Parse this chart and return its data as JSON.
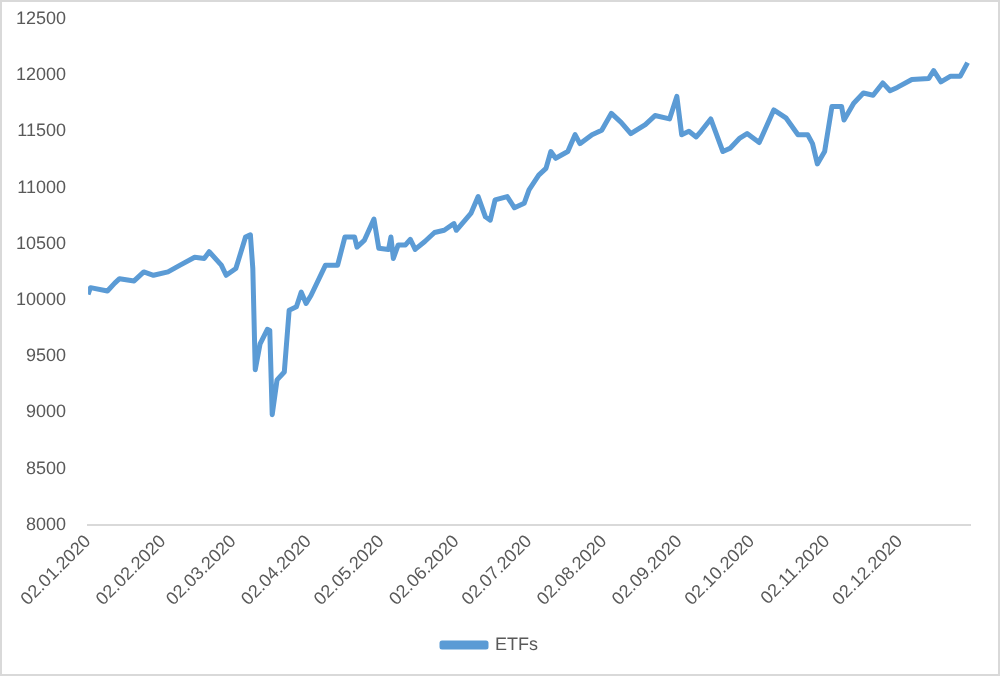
{
  "chart_data": {
    "type": "line",
    "legend": "bottom",
    "grid": false,
    "marker": "none",
    "line_style": "solid",
    "x": [
      "2020-01-02",
      "2020-01-03",
      "2020-01-10",
      "2020-01-13",
      "2020-01-15",
      "2020-01-21",
      "2020-01-25",
      "2020-01-29",
      "2020-02-04",
      "2020-02-09",
      "2020-02-15",
      "2020-02-19",
      "2020-02-21",
      "2020-02-26",
      "2020-02-28",
      "2020-03-03",
      "2020-03-07",
      "2020-03-09",
      "2020-03-10",
      "2020-03-11",
      "2020-03-13",
      "2020-03-16",
      "2020-03-17",
      "2020-03-18",
      "2020-03-20",
      "2020-03-23",
      "2020-03-25",
      "2020-03-28",
      "2020-03-30",
      "2020-04-01",
      "2020-04-03",
      "2020-04-09",
      "2020-04-14",
      "2020-04-17",
      "2020-04-21",
      "2020-04-22",
      "2020-04-25",
      "2020-04-29",
      "2020-05-01",
      "2020-05-05",
      "2020-05-06",
      "2020-05-07",
      "2020-05-09",
      "2020-05-12",
      "2020-05-14",
      "2020-05-16",
      "2020-05-20",
      "2020-05-24",
      "2020-05-28",
      "2020-06-01",
      "2020-06-02",
      "2020-06-08",
      "2020-06-11",
      "2020-06-14",
      "2020-06-16",
      "2020-06-18",
      "2020-06-23",
      "2020-06-26",
      "2020-06-30",
      "2020-07-02",
      "2020-07-06",
      "2020-07-09",
      "2020-07-11",
      "2020-07-13",
      "2020-07-18",
      "2020-07-21",
      "2020-07-23",
      "2020-07-28",
      "2020-08-01",
      "2020-08-05",
      "2020-08-09",
      "2020-08-13",
      "2020-08-19",
      "2020-08-23",
      "2020-08-29",
      "2020-09-01",
      "2020-09-03",
      "2020-09-06",
      "2020-09-09",
      "2020-09-11",
      "2020-09-15",
      "2020-09-20",
      "2020-09-23",
      "2020-09-27",
      "2020-09-30",
      "2020-10-05",
      "2020-10-11",
      "2020-10-16",
      "2020-10-21",
      "2020-10-25",
      "2020-10-27",
      "2020-10-29",
      "2020-11-01",
      "2020-11-04",
      "2020-11-08",
      "2020-11-09",
      "2020-11-13",
      "2020-11-17",
      "2020-11-21",
      "2020-11-25",
      "2020-11-28",
      "2020-12-01",
      "2020-12-07",
      "2020-12-14",
      "2020-12-16",
      "2020-12-19",
      "2020-12-23",
      "2020-12-27",
      "2020-12-30"
    ],
    "series": [
      {
        "name": "ETFs",
        "color": "#5b9bd5",
        "values": [
          10050,
          10110,
          10080,
          10150,
          10190,
          10170,
          10250,
          10220,
          10250,
          10310,
          10380,
          10370,
          10430,
          10310,
          10220,
          10280,
          10560,
          10580,
          10280,
          9380,
          9610,
          9740,
          9730,
          8980,
          9290,
          9360,
          9910,
          9940,
          10070,
          9970,
          10040,
          10310,
          10310,
          10560,
          10560,
          10470,
          10530,
          10720,
          10460,
          10450,
          10560,
          10370,
          10490,
          10490,
          10540,
          10450,
          10520,
          10600,
          10620,
          10680,
          10620,
          10770,
          10920,
          10740,
          10710,
          10890,
          10920,
          10820,
          10860,
          10980,
          11110,
          11170,
          11320,
          11260,
          11320,
          11470,
          11390,
          11470,
          11510,
          11660,
          11580,
          11480,
          11560,
          11640,
          11610,
          11810,
          11470,
          11500,
          11450,
          11500,
          11610,
          11320,
          11350,
          11440,
          11480,
          11400,
          11690,
          11620,
          11470,
          11470,
          11390,
          11210,
          11320,
          11720,
          11720,
          11600,
          11750,
          11840,
          11820,
          11930,
          11860,
          11890,
          11960,
          11970,
          12040,
          11940,
          11990,
          11990,
          12110
        ]
      }
    ],
    "xlim": [
      "2020-01-02",
      "2020-12-31"
    ],
    "xticks": [
      {
        "value": "2020-01-02",
        "label": "02.01.2020"
      },
      {
        "value": "2020-02-02",
        "label": "02.02.2020"
      },
      {
        "value": "2020-03-02",
        "label": "02.03.2020"
      },
      {
        "value": "2020-04-02",
        "label": "02.04.2020"
      },
      {
        "value": "2020-05-02",
        "label": "02.05.2020"
      },
      {
        "value": "2020-06-02",
        "label": "02.06.2020"
      },
      {
        "value": "2020-07-02",
        "label": "02.07.2020"
      },
      {
        "value": "2020-08-02",
        "label": "02.08.2020"
      },
      {
        "value": "2020-09-02",
        "label": "02.09.2020"
      },
      {
        "value": "2020-10-02",
        "label": "02.10.2020"
      },
      {
        "value": "2020-11-02",
        "label": "02.11.2020"
      },
      {
        "value": "2020-12-02",
        "label": "02.12.2020"
      }
    ],
    "ylim": [
      8000,
      12500
    ],
    "yticks": [
      8000,
      8500,
      9000,
      9500,
      10000,
      10500,
      11000,
      11500,
      12000,
      12500
    ]
  }
}
